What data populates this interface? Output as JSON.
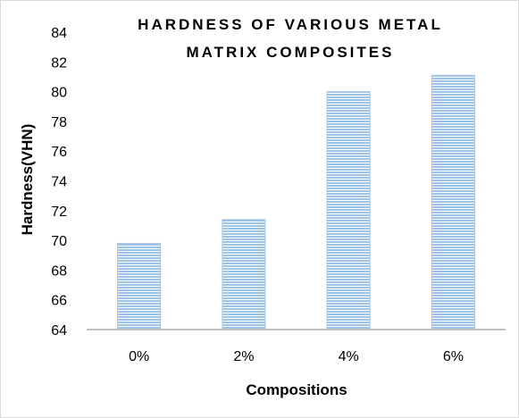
{
  "chart_data": {
    "type": "bar",
    "title_lines": [
      "HARDNESS  OF VARIOUS METAL",
      "MATRIX COMPOSITES"
    ],
    "xlabel": "Compositions",
    "ylabel": "Hardness(VHN)",
    "categories": [
      "0%",
      "2%",
      "4%",
      "6%"
    ],
    "values": [
      69.8,
      71.4,
      80.0,
      81.1
    ],
    "ylim": [
      64,
      84
    ],
    "yticks": [
      64,
      66,
      68,
      70,
      72,
      74,
      76,
      78,
      80,
      82,
      84
    ],
    "grid": false,
    "legend": "none",
    "bar_fill": "#9dc3e6",
    "bar_stripe": "#5b8fd0",
    "bar_border": "#a9c4e4",
    "axis_color": "#bfbfbf"
  }
}
